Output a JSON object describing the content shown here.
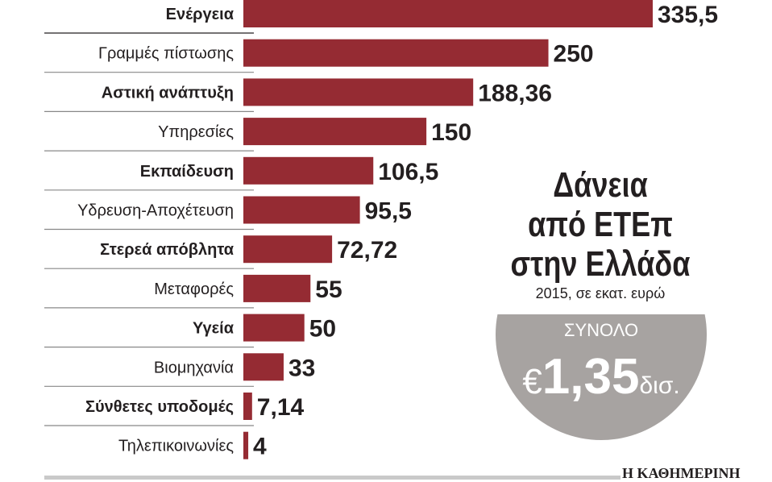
{
  "chart_data": {
    "type": "bar",
    "orientation": "horizontal",
    "title": "Δάνεια από ΕΤΕπ στην Ελλάδα",
    "title_lines": [
      "Δάνεια",
      "από ΕΤΕπ",
      "στην Ελλάδα"
    ],
    "subtitle": "2015, σε εκατ. ευρώ",
    "categories": [
      "Ενέργεια",
      "Γραμμές πίστωσης",
      "Αστική ανάπτυξη",
      "Υπηρεσίες",
      "Εκπαίδευση",
      "Υδρευση-Αποχέτευση",
      "Στερεά απόβλητα",
      "Μεταφορές",
      "Υγεία",
      "Βιομηχανία",
      "Σύνθετες υποδομές",
      "Τηλεπικοινωνίες"
    ],
    "values": [
      335.5,
      250,
      188.36,
      150,
      106.5,
      95.5,
      72.72,
      55,
      50,
      33,
      7.14,
      4
    ],
    "value_labels": [
      "335,5",
      "250",
      "188,36",
      "150",
      "106,5",
      "95,5",
      "72,72",
      "55",
      "50",
      "33",
      "7,14",
      "4"
    ],
    "xlim": [
      0,
      335.5
    ],
    "grid": false,
    "bar_color": "#952b33",
    "total": {
      "label": "ΣΥΝΟΛΟ",
      "currency": "€",
      "value": "1,35",
      "unit": "δισ."
    }
  },
  "source": "Η ΚΑΘΗΜΕΡΙΝΗ"
}
